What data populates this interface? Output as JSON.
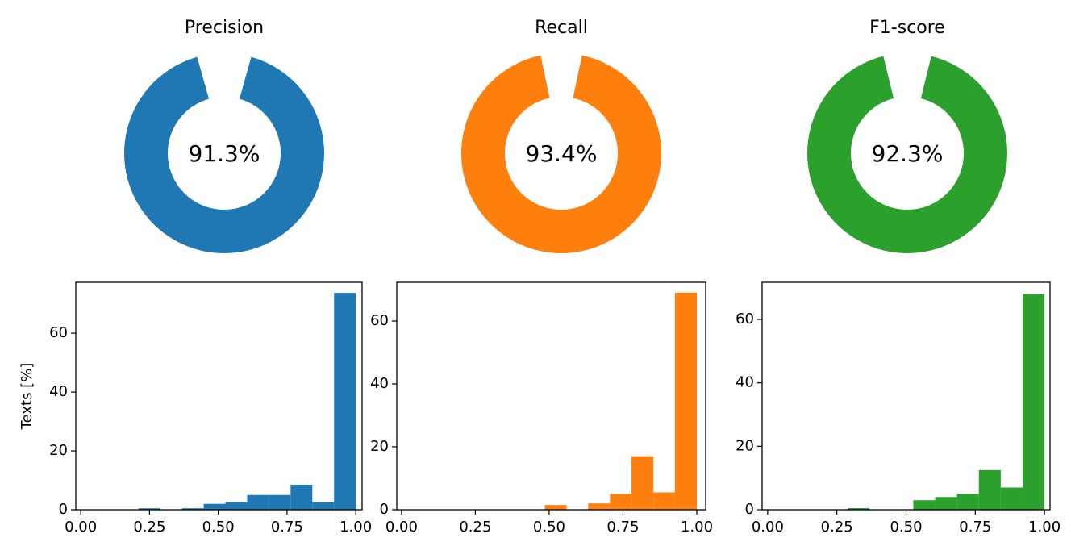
{
  "chart_data": [
    {
      "type": "donut",
      "title": "Precision",
      "values": [
        91.3,
        8.7
      ],
      "colors": [
        "#1f77b4",
        "#ffffff"
      ],
      "value_labels": [
        "91.3%",
        null
      ]
    },
    {
      "type": "donut",
      "title": "Recall",
      "values": [
        93.4,
        6.6
      ],
      "colors": [
        "#ff7f0e",
        "#ffffff"
      ],
      "value_labels": [
        "93.4%",
        null
      ]
    },
    {
      "type": "donut",
      "title": "F1-score",
      "values": [
        92.3,
        7.7
      ],
      "colors": [
        "#2ca02c",
        "#ffffff"
      ],
      "value_labels": [
        "92.3%",
        null
      ]
    },
    {
      "type": "histogram",
      "ylabel": "Texts [%]",
      "color": "#1f77b4",
      "bins": [
        0.21,
        0.289,
        0.368,
        0.447,
        0.526,
        0.605,
        0.684,
        0.763,
        0.842,
        0.921,
        1.0
      ],
      "counts": [
        0.5,
        0,
        0.5,
        2,
        2.5,
        5,
        5,
        8.5,
        2.5,
        73.7
      ],
      "xlim": [
        -0.018,
        1.023
      ],
      "ylim": [
        0,
        77.3
      ],
      "xticks": [
        {
          "value": 0,
          "label": "0.00"
        },
        {
          "value": 0.25,
          "label": "0.25"
        },
        {
          "value": 0.5,
          "label": "0.50"
        },
        {
          "value": 0.75,
          "label": "0.75"
        },
        {
          "value": 1,
          "label": "1.00"
        }
      ],
      "yticks": [
        0,
        20,
        40,
        60
      ]
    },
    {
      "type": "histogram",
      "color": "#ff7f0e",
      "bins": [
        0.485,
        0.559,
        0.632,
        0.706,
        0.779,
        0.853,
        0.926,
        1.0
      ],
      "counts": [
        1.5,
        0,
        2,
        5,
        17,
        5.5,
        69
      ],
      "xlim": [
        -0.016,
        1.03
      ],
      "ylim": [
        0,
        72.3
      ],
      "xticks": [
        {
          "value": 0,
          "label": "0.00"
        },
        {
          "value": 0.25,
          "label": "0.25"
        },
        {
          "value": 0.5,
          "label": "0.50"
        },
        {
          "value": 0.75,
          "label": "0.75"
        },
        {
          "value": 1,
          "label": "1.00"
        }
      ],
      "yticks": [
        0,
        20,
        40,
        60
      ]
    },
    {
      "type": "histogram",
      "color": "#2ca02c",
      "bins": [
        0.289,
        0.368,
        0.447,
        0.526,
        0.605,
        0.684,
        0.763,
        0.842,
        0.921,
        1.0
      ],
      "counts": [
        0.5,
        0,
        0,
        3,
        4,
        5,
        12.5,
        7,
        68
      ],
      "xlim": [
        -0.02,
        1.02
      ],
      "ylim": [
        0,
        71.7
      ],
      "xticks": [
        {
          "value": 0,
          "label": "0.00"
        },
        {
          "value": 0.25,
          "label": "0.25"
        },
        {
          "value": 0.5,
          "label": "0.50"
        },
        {
          "value": 0.75,
          "label": "0.75"
        },
        {
          "value": 1,
          "label": "1.00"
        }
      ],
      "yticks": [
        0,
        20,
        40,
        60
      ]
    }
  ]
}
